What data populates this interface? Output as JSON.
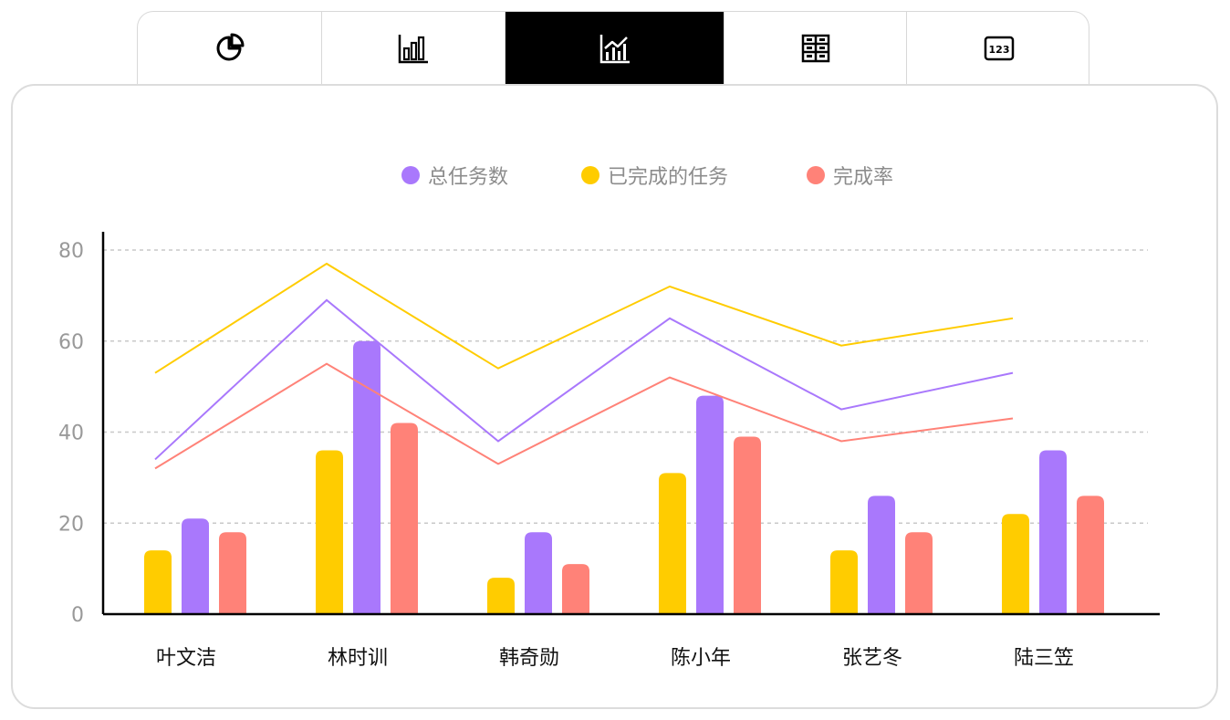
{
  "toolbar": {
    "tabs": [
      {
        "icon": "pie-chart-icon",
        "active": false
      },
      {
        "icon": "bar-chart-icon",
        "active": false
      },
      {
        "icon": "line-bar-chart-icon",
        "active": true
      },
      {
        "icon": "table-grid-icon",
        "active": false
      },
      {
        "icon": "number-123-icon",
        "active": false
      }
    ]
  },
  "colors": {
    "total": "#a978fc",
    "completed": "#ffcc00",
    "rate": "#ff8278",
    "grid": "#c8c8c8",
    "tick": "#999999",
    "axis": "#000000"
  },
  "chart_data": {
    "type": "bar",
    "title": "",
    "xlabel": "",
    "ylabel": "",
    "categories": [
      "叶文洁",
      "林时训",
      "韩奇勋",
      "陈小年",
      "张艺冬",
      "陆三笠"
    ],
    "ylim": [
      0,
      84
    ],
    "yticks": [
      "0",
      "20",
      "40",
      "60",
      "80"
    ],
    "grid": true,
    "legend_position": "top-center",
    "series": [
      {
        "name": "总任务数",
        "color": "#a978fc",
        "bars": [
          21,
          60,
          18,
          48,
          26,
          36
        ],
        "line": [
          34,
          69,
          38,
          65,
          45,
          53
        ]
      },
      {
        "name": "已完成的任务",
        "color": "#ffcc00",
        "bars": [
          14,
          36,
          8,
          31,
          14,
          22
        ],
        "line": [
          53,
          77,
          54,
          72,
          59,
          65
        ]
      },
      {
        "name": "完成率",
        "color": "#ff8278",
        "bars": [
          18,
          42,
          11,
          39,
          18,
          26
        ],
        "line": [
          32,
          55,
          33,
          52,
          38,
          43
        ]
      }
    ]
  }
}
